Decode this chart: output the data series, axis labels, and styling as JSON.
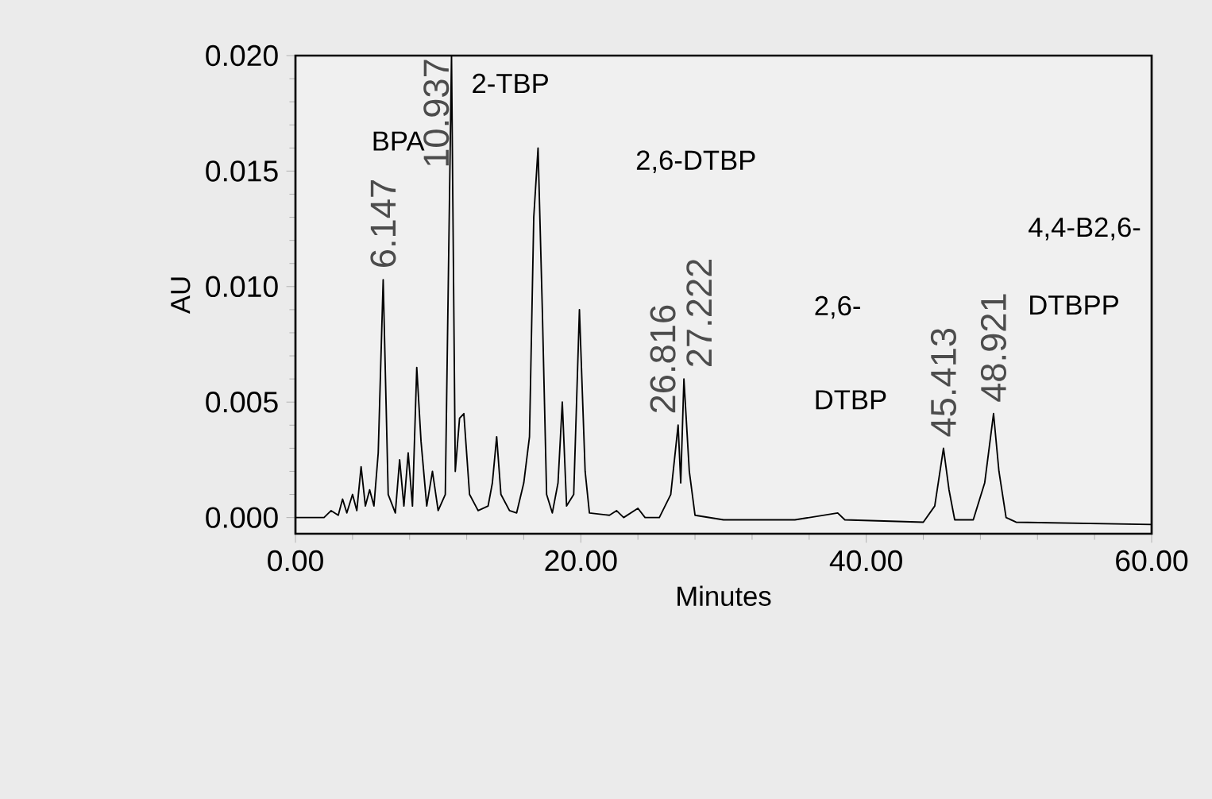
{
  "chart_data": {
    "type": "line",
    "xlabel": "Minutes",
    "ylabel": "AU",
    "xlim": [
      0,
      60
    ],
    "ylim": [
      -0.0007,
      0.02
    ],
    "xticks": [
      {
        "value": 0,
        "label": "0.00"
      },
      {
        "value": 20,
        "label": "20.00"
      },
      {
        "value": 40,
        "label": "40.00"
      },
      {
        "value": 60,
        "label": "60.00"
      }
    ],
    "yticks": [
      {
        "value": 0,
        "label": "0.000"
      },
      {
        "value": 0.005,
        "label": "0.005"
      },
      {
        "value": 0.01,
        "label": "0.010"
      },
      {
        "value": 0.015,
        "label": "0.015"
      },
      {
        "value": 0.02,
        "label": "0.020"
      }
    ],
    "grid": false,
    "marker": "none",
    "line_style": "solid",
    "series": [
      {
        "color": "#000000",
        "x": [
          0,
          2,
          2.5,
          3,
          3.3,
          3.6,
          4,
          4.3,
          4.6,
          4.9,
          5.2,
          5.5,
          5.8,
          6.147,
          6.5,
          7,
          7.3,
          7.6,
          7.9,
          8.2,
          8.5,
          8.8,
          9.2,
          9.6,
          10,
          10.5,
          10.937,
          11.2,
          11.5,
          11.8,
          12.2,
          12.8,
          13.5,
          13.8,
          14.1,
          14.4,
          15,
          15.5,
          16,
          16.4,
          16.7,
          17,
          17.3,
          17.6,
          18,
          18.4,
          18.7,
          19,
          19.5,
          19.9,
          20.3,
          20.6,
          22,
          22.5,
          23,
          24,
          24.5,
          25.5,
          26.3,
          26.816,
          27,
          27.222,
          27.6,
          28,
          30,
          35,
          38,
          38.5,
          44,
          44.8,
          45.413,
          45.8,
          46.2,
          47.5,
          48.3,
          48.921,
          49.3,
          49.8,
          50.5,
          60
        ],
        "values": [
          0,
          0,
          0.0003,
          0.0001,
          0.0008,
          0.0002,
          0.001,
          0.0003,
          0.0022,
          0.0005,
          0.0012,
          0.0005,
          0.0028,
          0.0103,
          0.001,
          0.0002,
          0.0025,
          0.0005,
          0.0028,
          0.0005,
          0.0065,
          0.0033,
          0.0005,
          0.002,
          0.0003,
          0.001,
          0.02,
          0.002,
          0.0043,
          0.0045,
          0.001,
          0.0003,
          0.0005,
          0.0015,
          0.0035,
          0.001,
          0.0003,
          0.0002,
          0.0015,
          0.0035,
          0.013,
          0.016,
          0.009,
          0.001,
          0.0002,
          0.0015,
          0.005,
          0.0005,
          0.001,
          0.009,
          0.002,
          0.0002,
          0.0001,
          0.0003,
          0,
          0.0004,
          0,
          0,
          0.001,
          0.004,
          0.0015,
          0.006,
          0.002,
          0.0001,
          -0.0001,
          -0.0001,
          0.0002,
          -0.0001,
          -0.0002,
          0.0005,
          0.003,
          0.0012,
          -0.0001,
          -0.0001,
          0.0015,
          0.0045,
          0.002,
          0,
          -0.0002,
          -0.0003
        ]
      }
    ],
    "annotations": [
      {
        "text": "6.147",
        "x": 6.147,
        "y": 0.0103
      },
      {
        "text": "10.937",
        "x": 10.937,
        "y": 0.02
      },
      {
        "text": "26.816",
        "x": 26.816,
        "y": 0.004
      },
      {
        "text": "27.222",
        "x": 27.222,
        "y": 0.006
      },
      {
        "text": "45.413",
        "x": 45.413,
        "y": 0.003
      },
      {
        "text": "48.921",
        "x": 48.921,
        "y": 0.0045
      },
      "BPA",
      "2-TBP",
      "2,6-DTBP",
      "2,6-",
      "DTBP",
      "4,4-B2,6-",
      "DTBPP"
    ]
  }
}
